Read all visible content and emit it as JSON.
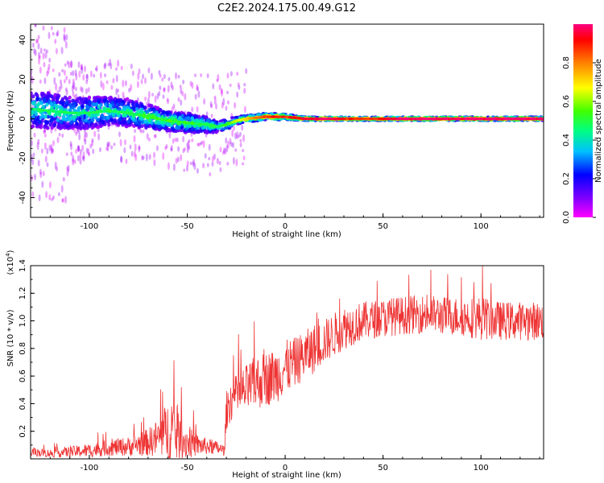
{
  "title": "C2E2.2024.175.00.49.G12",
  "chart_data": [
    {
      "type": "heatmap",
      "xlabel": "Height of straight line (km)",
      "ylabel": "Frequency (Hz)",
      "xlim": [
        -130,
        132
      ],
      "ylim": [
        -50,
        48
      ],
      "xticks": [
        -100,
        -50,
        0,
        50,
        100
      ],
      "yticks": [
        -40,
        -20,
        0,
        20,
        40
      ],
      "colorbar": {
        "label": "Normalized spectral amplitude",
        "range": [
          0,
          1
        ],
        "ticks": [
          0.0,
          0.2,
          0.4,
          0.6,
          0.8
        ],
        "tick_labels": [
          "0.0",
          "0.2",
          "0.4",
          "0.6",
          "0.8"
        ],
        "colormap": [
          "#ff00ff",
          "#8000ff",
          "#0000ff",
          "#00c0ff",
          "#00ff80",
          "#40ff00",
          "#ffff00",
          "#ff8000",
          "#ff0000",
          "#ff0080"
        ]
      },
      "ridge": {
        "x": [
          -130,
          -120,
          -110,
          -100,
          -90,
          -80,
          -70,
          -60,
          -50,
          -40,
          -35,
          -30,
          -25,
          -20,
          -10,
          0,
          10,
          20,
          40,
          60,
          80,
          100,
          120,
          132
        ],
        "freq": [
          5,
          4,
          3,
          3,
          4,
          3,
          1,
          -1,
          -2,
          -3,
          -4,
          -3,
          -1,
          0,
          1,
          1,
          0,
          0,
          0,
          0,
          0,
          0,
          0,
          0
        ],
        "spread": [
          9,
          9,
          8,
          8,
          7,
          7,
          6,
          5,
          5,
          4,
          3,
          3,
          2,
          2,
          2,
          1.5,
          1,
          1,
          1,
          1,
          1,
          1,
          1,
          1
        ],
        "peak_amplitude": [
          0.45,
          0.45,
          0.45,
          0.45,
          0.45,
          0.45,
          0.5,
          0.5,
          0.5,
          0.45,
          0.45,
          0.5,
          0.6,
          0.7,
          0.8,
          0.85,
          0.9,
          0.95,
          0.8,
          0.95,
          0.95,
          0.95,
          0.95,
          0.95
        ]
      }
    },
    {
      "type": "line",
      "xlabel": "Height of straight line (km)",
      "ylabel": "SNR (10 * v/v)",
      "y_multiplier": "(x10",
      "y_exponent": "4",
      "y_multiplier_close": ")",
      "xlim": [
        -130,
        132
      ],
      "ylim": [
        0,
        1.4
      ],
      "xticks": [
        -100,
        -50,
        0,
        50,
        100
      ],
      "yticks": [
        0.2,
        0.4,
        0.6,
        0.8,
        1.0,
        1.2,
        1.4
      ],
      "color": "#ee3333",
      "envelope": {
        "x": [
          -130,
          -120,
          -110,
          -100,
          -90,
          -80,
          -70,
          -65,
          -60,
          -58,
          -55,
          -50,
          -45,
          -40,
          -35,
          -31,
          -30,
          -28,
          -25,
          -20,
          -15,
          -10,
          -5,
          0,
          5,
          10,
          15,
          20,
          25,
          30,
          40,
          50,
          60,
          70,
          80,
          90,
          100,
          110,
          120,
          132
        ],
        "base": [
          0.05,
          0.04,
          0.05,
          0.06,
          0.08,
          0.09,
          0.12,
          0.15,
          0.2,
          0.22,
          0.16,
          0.12,
          0.1,
          0.09,
          0.08,
          0.06,
          0.35,
          0.42,
          0.45,
          0.5,
          0.55,
          0.58,
          0.6,
          0.66,
          0.7,
          0.75,
          0.8,
          0.85,
          0.9,
          0.95,
          1.0,
          1.02,
          1.04,
          1.05,
          1.04,
          1.03,
          1.02,
          1.0,
          1.0,
          1.0
        ],
        "amp": [
          0.03,
          0.03,
          0.04,
          0.05,
          0.06,
          0.07,
          0.1,
          0.14,
          0.22,
          0.28,
          0.18,
          0.12,
          0.08,
          0.06,
          0.05,
          0.04,
          0.14,
          0.15,
          0.16,
          0.18,
          0.2,
          0.2,
          0.2,
          0.2,
          0.18,
          0.18,
          0.18,
          0.16,
          0.16,
          0.16,
          0.14,
          0.14,
          0.14,
          0.14,
          0.14,
          0.14,
          0.16,
          0.14,
          0.14,
          0.14
        ]
      }
    }
  ]
}
